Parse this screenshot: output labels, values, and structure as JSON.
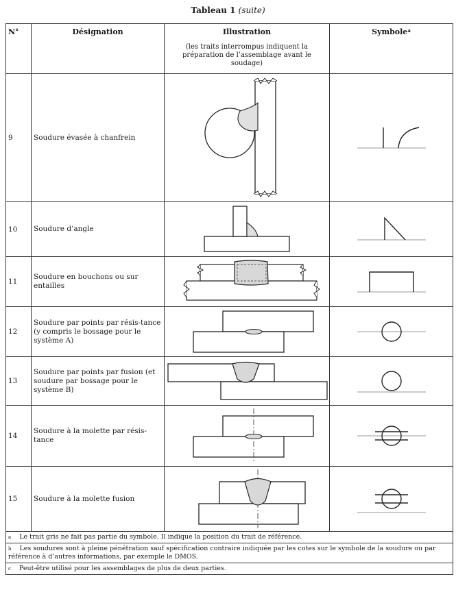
{
  "title": {
    "main": "Tableau 1",
    "suite": "(suite)"
  },
  "headers": {
    "num": "N°",
    "designation": "Désignation",
    "illustration": "Illustration",
    "illustration_note": "(les traits interrompus indiquent la préparation de l’assemblage avant le soudage)",
    "symbol": "Symbole",
    "symbol_sup": "a"
  },
  "rows": [
    {
      "num": "9",
      "designation": "Soudure évasée à chanfrein",
      "illustration_icon": "flare-bevel-weld-illustration",
      "symbol_icon": "flare-bevel-weld-symbol"
    },
    {
      "num": "10",
      "designation": "Soudure d’angle",
      "illustration_icon": "fillet-weld-illustration",
      "symbol_icon": "fillet-weld-symbol"
    },
    {
      "num": "11",
      "designation": "Soudure en bouchons ou sur entailles",
      "illustration_icon": "plug-weld-illustration",
      "symbol_icon": "plug-weld-symbol"
    },
    {
      "num": "12",
      "designation": "Soudure par points par résis-tance (y compris le bossage pour le système A)",
      "illustration_icon": "resistance-spot-weld-illustration",
      "symbol_icon": "spot-weld-symbol"
    },
    {
      "num": "13",
      "designation": "Soudure par points par fusion (et soudure par bossage pour le système B)",
      "illustration_icon": "fusion-spot-weld-illustration",
      "symbol_icon": "spot-weld-symbol-offset"
    },
    {
      "num": "14",
      "designation": "Soudure à la molette par résis-tance",
      "illustration_icon": "resistance-seam-weld-illustration",
      "symbol_icon": "seam-weld-symbol"
    },
    {
      "num": "15",
      "designation": "Soudure à la molette fusion",
      "illustration_icon": "fusion-seam-weld-illustration",
      "symbol_icon": "seam-weld-symbol-offset"
    }
  ],
  "footnotes": [
    {
      "mark": "a",
      "text": "Le trait gris ne fait pas partie du symbole. Il indique la position du trait de référence."
    },
    {
      "mark": "b",
      "text": "Les soudures sont à pleine pénétration sauf spécification contraire indiquée par les cotes sur le symbole de la soudure ou par référence à d’autres informations, par exemple le DMOS."
    },
    {
      "mark": "c",
      "text": "Peut-être utilisé pour les assemblages de plus de deux parties."
    }
  ]
}
